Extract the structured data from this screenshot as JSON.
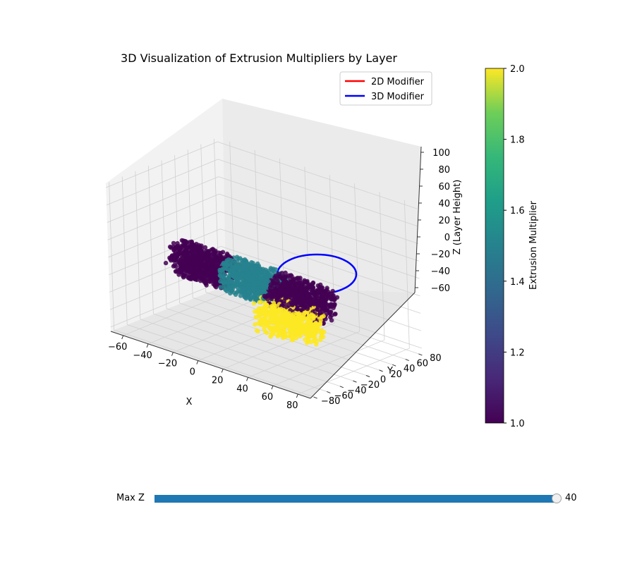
{
  "chart_data": {
    "type": "scatter",
    "title": "3D Visualization of Extrusion Multipliers by Layer",
    "xlabel": "X",
    "ylabel": "Y",
    "zlabel": "Z (Layer Height)",
    "xlim": [
      -70,
      90
    ],
    "ylim": [
      -85,
      85
    ],
    "zlim": [
      -65,
      105
    ],
    "xticks": [
      "−60",
      "−40",
      "−20",
      "0",
      "20",
      "40",
      "60",
      "80"
    ],
    "yticks": [
      "−80",
      "−60",
      "−40",
      "−20",
      "0",
      "20",
      "40",
      "60",
      "80"
    ],
    "zticks": [
      "−60",
      "−40",
      "−20",
      "0",
      "20",
      "40",
      "60",
      "80",
      "100"
    ],
    "legend_position": "top-right",
    "legend": [
      {
        "label": "2D Modifier",
        "color": "#ff0000"
      },
      {
        "label": "3D Modifier",
        "color": "#0000ff"
      }
    ],
    "colorbar": {
      "label": "Extrusion Multiplier",
      "min": 1.0,
      "max": 2.0,
      "ticks": [
        "1.0",
        "1.2",
        "1.4",
        "1.6",
        "1.8",
        "2.0"
      ],
      "colormap": "viridis"
    },
    "clusters": [
      {
        "value": 1.0,
        "x_range": [
          -60,
          -20
        ],
        "y_range": [
          -20,
          20
        ],
        "z_range": [
          -20,
          20
        ],
        "count": 620
      },
      {
        "value": 1.5,
        "x_range": [
          -20,
          20
        ],
        "y_range": [
          -20,
          20
        ],
        "z_range": [
          -20,
          20
        ],
        "count": 620
      },
      {
        "value": 1.0,
        "x_range": [
          20,
          60
        ],
        "y_range": [
          -20,
          20
        ],
        "z_range": [
          -20,
          20
        ],
        "count": 620
      },
      {
        "value": 2.0,
        "center": [
          40,
          -20,
          -20
        ],
        "radius": 25,
        "z_range": [
          -35,
          -5
        ],
        "count": 520
      }
    ],
    "modifier_2d": {
      "type": "line",
      "x_range": [
        -20,
        20
      ],
      "y": -20,
      "z": -25
    },
    "modifier_3d": {
      "type": "circle",
      "center": [
        40,
        -20
      ],
      "radius": 35,
      "z": -25
    }
  },
  "slider": {
    "label": "Max Z",
    "value": "40",
    "fraction": 1.0
  }
}
